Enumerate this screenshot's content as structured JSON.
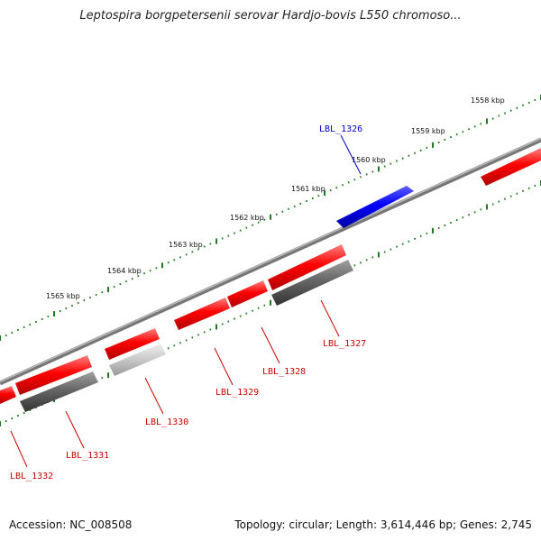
{
  "title": "Leptospira borgpetersenii serovar Hardjo-bovis L550 chromoso...",
  "footer": {
    "accession": "Accession: NC_008508",
    "topology": "Topology: circular; Length: 3,614,446 bp; Genes: 2,745"
  },
  "colors": {
    "forward_gene": "#ff0000",
    "reverse_gene": "#ff0000",
    "highlight_gene": "#0000ff",
    "grey_feature": "#666666",
    "light_feature": "#cccccc",
    "backbone": "#888888",
    "ticks": "#1e7a1e",
    "red_label": "#cc0000",
    "blue_label": "#0000cc"
  },
  "ruler": [
    "1558 kbp",
    "1559 kbp",
    "1560 kbp",
    "1561 kbp",
    "1562 kbp",
    "1563 kbp",
    "1564 kbp",
    "1565 kbp"
  ],
  "genes": [
    {
      "label": "LBL_1326",
      "color": "blue"
    },
    {
      "label": "LBL_1327",
      "color": "red"
    },
    {
      "label": "LBL_1328",
      "color": "red"
    },
    {
      "label": "LBL_1329",
      "color": "red"
    },
    {
      "label": "LBL_1330",
      "color": "red"
    },
    {
      "label": "LBL_1331",
      "color": "red"
    },
    {
      "label": "LBL_1332",
      "color": "red"
    }
  ]
}
